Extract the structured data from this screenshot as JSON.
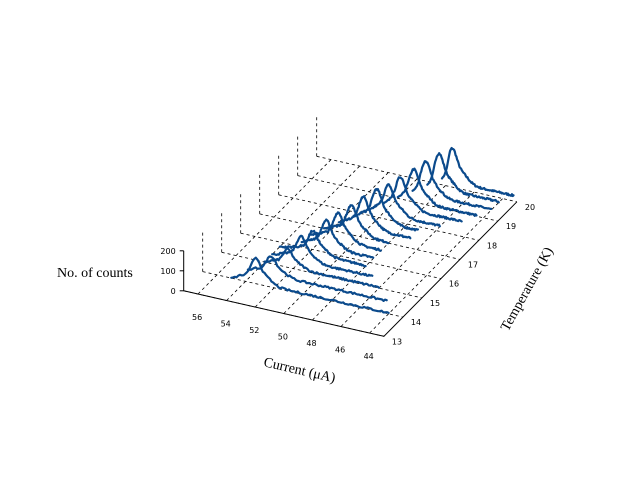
{
  "chart_data": {
    "type": "line",
    "subtype": "3d-waterfall",
    "title": "",
    "xlabel": "Current (μA)",
    "ylabel": "Temperature (K)",
    "zlabel": "No. of counts",
    "xlim": [
      43,
      57
    ],
    "ylim": [
      13,
      20
    ],
    "zlim": [
      0,
      200
    ],
    "x_ticks": [
      "44",
      "46",
      "48",
      "50",
      "52",
      "54",
      "56"
    ],
    "y_ticks": [
      "13",
      "14",
      "15",
      "16",
      "17",
      "18",
      "19",
      "20"
    ],
    "z_ticks": [
      "0",
      "100",
      "200"
    ],
    "grid": true,
    "color": "#0b4a8c",
    "series": [
      {
        "temperature": 14.0,
        "x_start": 55.0,
        "x_end": 44.0,
        "peak_current": 53.3,
        "peak_counts": 95
      },
      {
        "temperature": 14.5,
        "x_start": 54.5,
        "x_end": 44.8,
        "peak_current": 52.9,
        "peak_counts": 70
      },
      {
        "temperature": 15.0,
        "x_start": 54.0,
        "x_end": 46.0,
        "peak_current": 52.4,
        "peak_counts": 65
      },
      {
        "temperature": 15.4,
        "x_start": 54.0,
        "x_end": 47.0,
        "peak_current": 52.0,
        "peak_counts": 90
      },
      {
        "temperature": 15.8,
        "x_start": 54.0,
        "x_end": 48.0,
        "peak_current": 51.7,
        "peak_counts": 85
      },
      {
        "temperature": 16.2,
        "x_start": 53.0,
        "x_end": 48.0,
        "peak_current": 51.3,
        "peak_counts": 100
      },
      {
        "temperature": 16.6,
        "x_start": 53.0,
        "x_end": 48.0,
        "peak_current": 51.0,
        "peak_counts": 105
      },
      {
        "temperature": 17.0,
        "x_start": 52.5,
        "x_end": 48.0,
        "peak_current": 50.6,
        "peak_counts": 110
      },
      {
        "temperature": 17.4,
        "x_start": 52.0,
        "x_end": 47.0,
        "peak_current": 50.3,
        "peak_counts": 115
      },
      {
        "temperature": 17.8,
        "x_start": 51.5,
        "x_end": 47.0,
        "peak_current": 49.9,
        "peak_counts": 120
      },
      {
        "temperature": 18.2,
        "x_start": 51.0,
        "x_end": 46.0,
        "peak_current": 49.6,
        "peak_counts": 110
      },
      {
        "temperature": 18.6,
        "x_start": 50.5,
        "x_end": 45.0,
        "peak_current": 49.3,
        "peak_counts": 115
      },
      {
        "temperature": 19.0,
        "x_start": 50.0,
        "x_end": 44.5,
        "peak_current": 48.9,
        "peak_counts": 120
      },
      {
        "temperature": 19.4,
        "x_start": 49.5,
        "x_end": 44.0,
        "peak_current": 48.6,
        "peak_counts": 125
      },
      {
        "temperature": 19.8,
        "x_start": 49.0,
        "x_end": 44.0,
        "peak_current": 48.2,
        "peak_counts": 130
      },
      {
        "temperature": 20.2,
        "x_start": 48.5,
        "x_end": 43.5,
        "peak_current": 47.8,
        "peak_counts": 125
      }
    ]
  }
}
